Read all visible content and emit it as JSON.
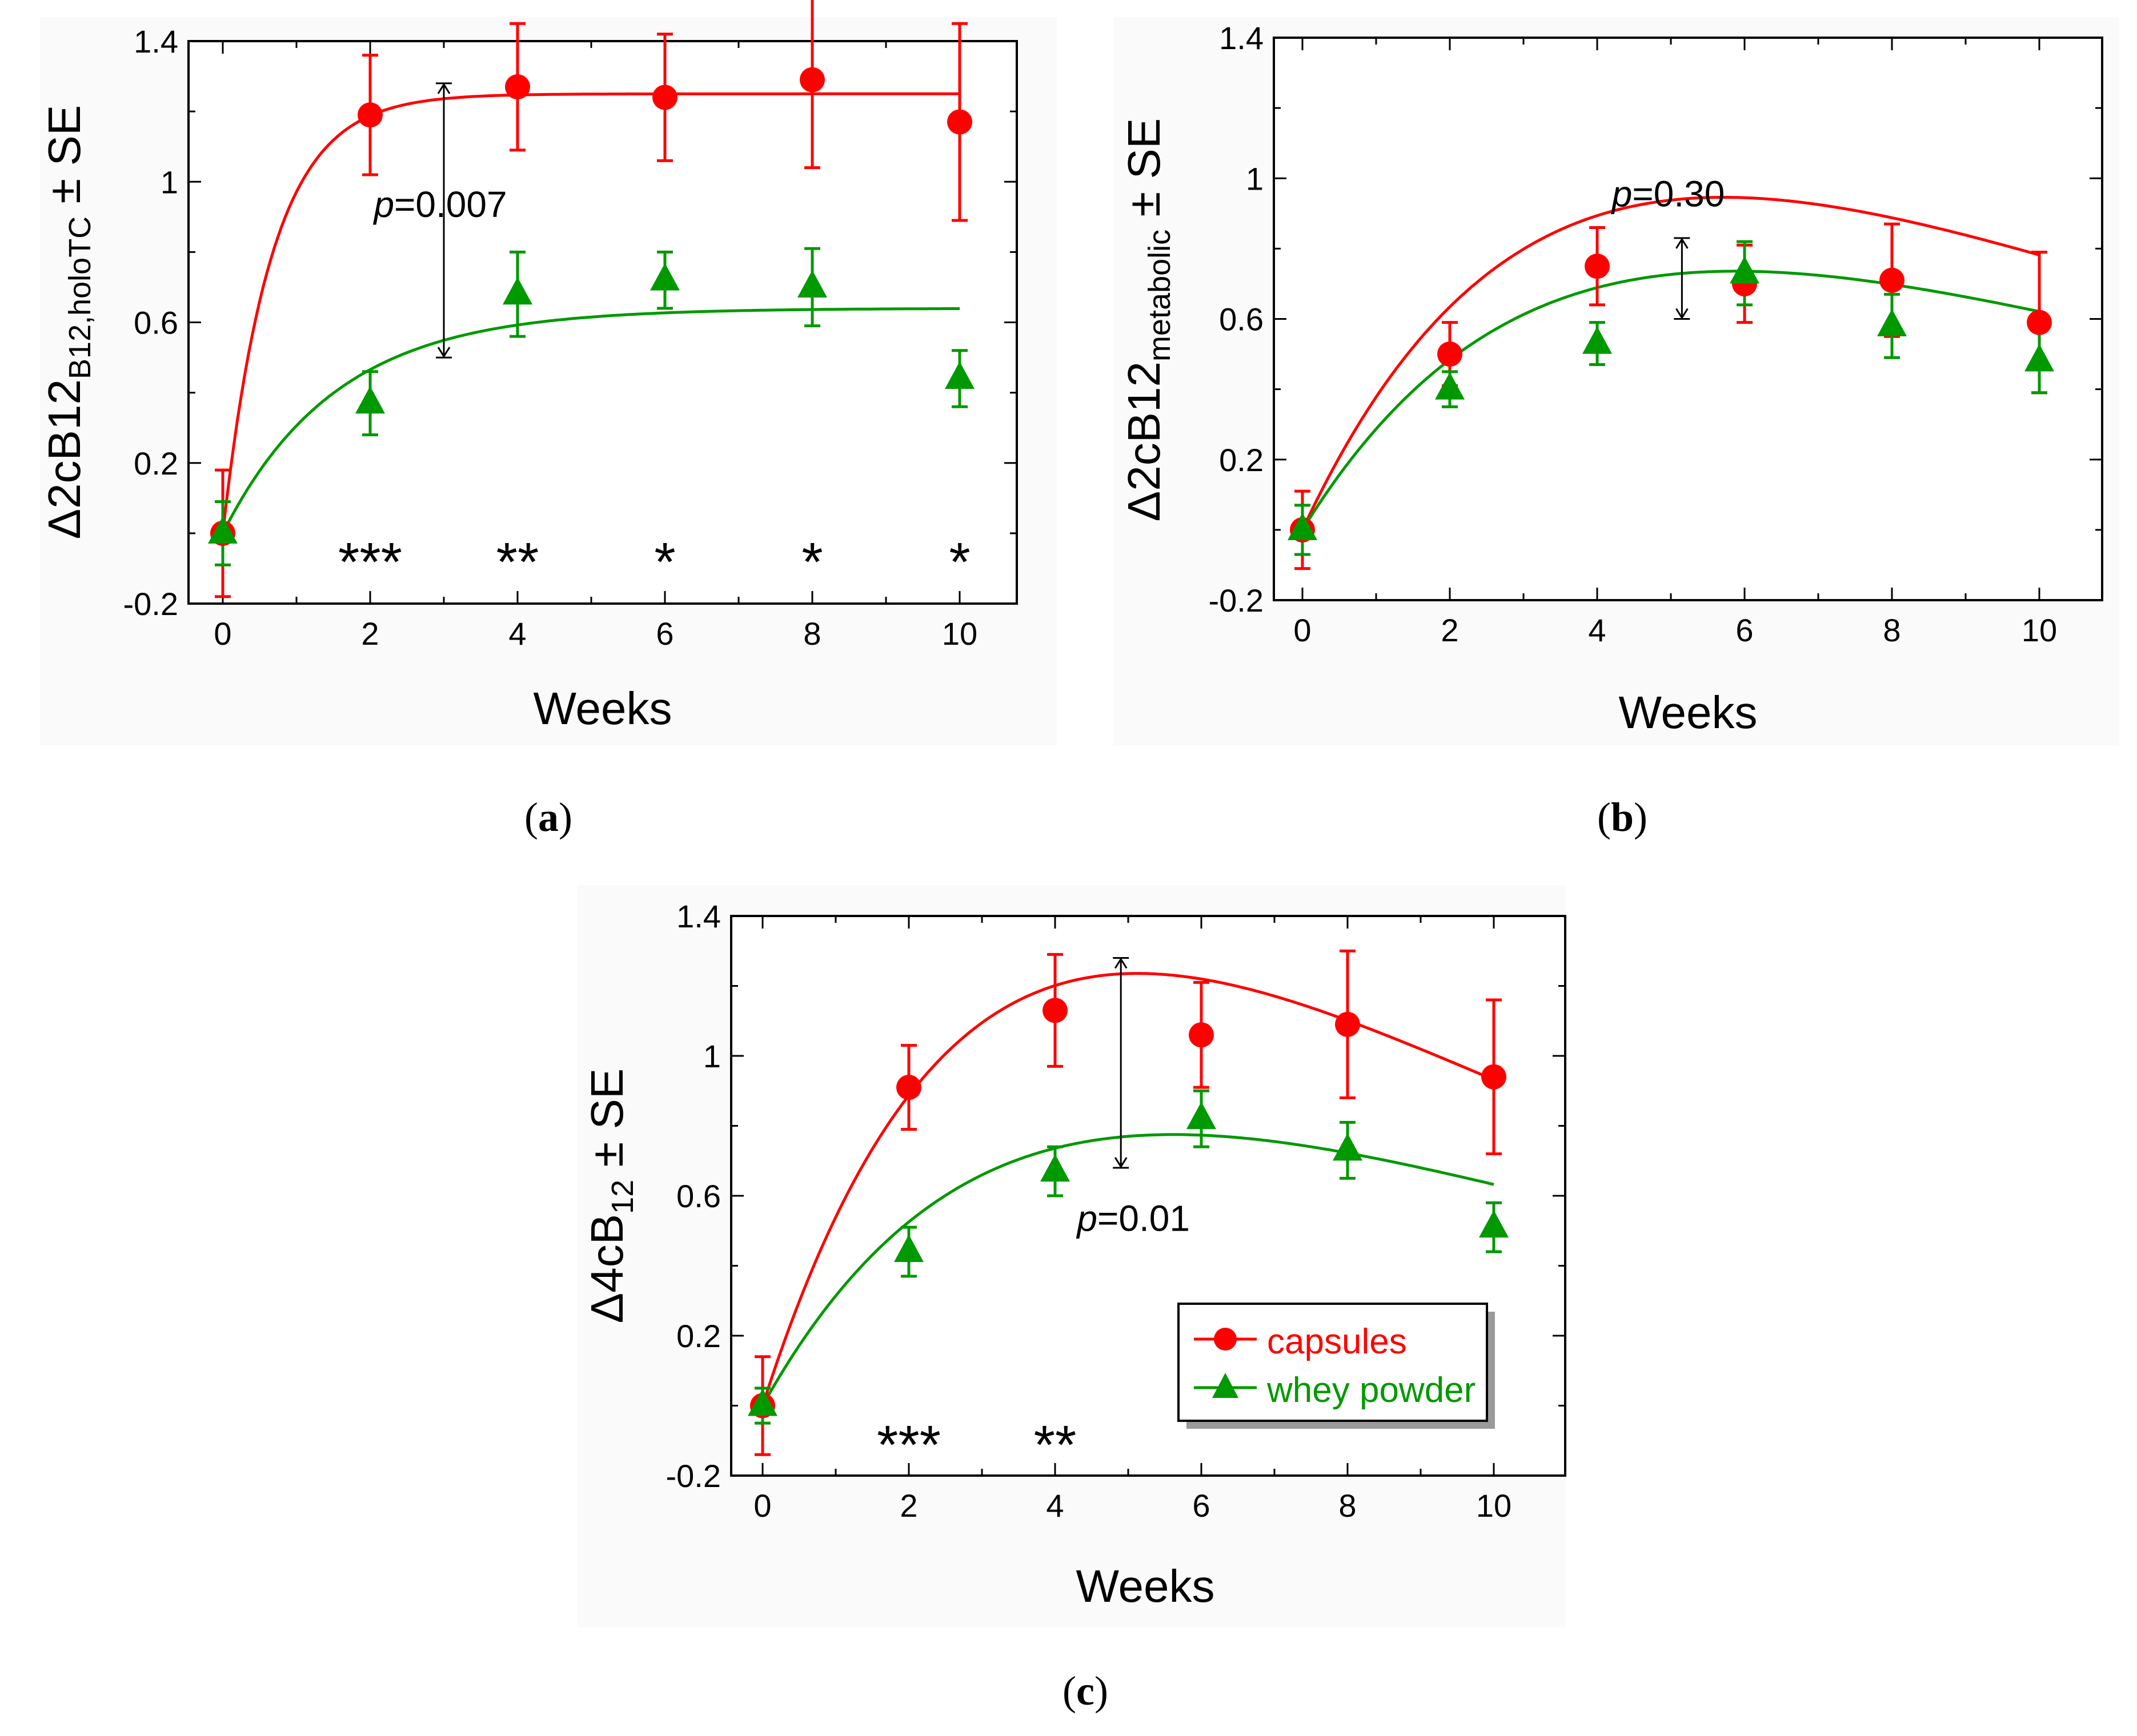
{
  "legend": {
    "capsules": "capsules",
    "whey": "whey powder"
  },
  "colors": {
    "capsules": "#ff0000",
    "whey": "#009900",
    "panel_bg": "#fafafa"
  },
  "chart_data": [
    {
      "type": "line",
      "panel_label": "a",
      "xlabel": "Weeks",
      "ylabel": {
        "main": "Δ2cB12",
        "sub": "B12,holoTC",
        "suffix": " ± SE"
      },
      "xlim": [
        0,
        10
      ],
      "ylim": [
        -0.2,
        1.4
      ],
      "xticks": [
        0,
        2,
        4,
        6,
        8,
        10
      ],
      "yticks": [
        -0.2,
        0.2,
        0.6,
        1,
        1.4
      ],
      "ytick_labels": [
        "-0.2",
        "0.2",
        "0.6",
        "1",
        "1.4"
      ],
      "series": [
        {
          "name": "capsules",
          "marker": "circle",
          "x": [
            0,
            2,
            4,
            6,
            8,
            10
          ],
          "y": [
            0.0,
            1.19,
            1.27,
            1.24,
            1.29,
            1.17
          ],
          "se": [
            0.18,
            0.17,
            0.18,
            0.18,
            0.25,
            0.28
          ],
          "fit": {
            "model": "exp",
            "a": 1.25,
            "k": 1.5,
            "x_end": 10
          }
        },
        {
          "name": "whey powder",
          "marker": "triangle",
          "x": [
            0,
            2,
            4,
            6,
            8,
            10
          ],
          "y": [
            0.0,
            0.37,
            0.68,
            0.72,
            0.7,
            0.44
          ],
          "se": [
            0.09,
            0.09,
            0.12,
            0.08,
            0.11,
            0.08
          ],
          "fit": {
            "model": "exp",
            "a": 0.64,
            "k": 0.65,
            "x_end": 10
          }
        }
      ],
      "annotations": [
        {
          "type": "bracket",
          "x": 3,
          "y1": 0.5,
          "y2": 1.28
        },
        {
          "type": "pvalue",
          "italic": "p",
          "text": "=0.007",
          "x": 2.05,
          "y": 0.9
        },
        {
          "type": "stars",
          "text": "***",
          "x": 2,
          "y": -0.07
        },
        {
          "type": "stars",
          "text": "**",
          "x": 4,
          "y": -0.07
        },
        {
          "type": "stars",
          "text": "*",
          "x": 6,
          "y": -0.07
        },
        {
          "type": "stars",
          "text": "*",
          "x": 8,
          "y": -0.07
        },
        {
          "type": "stars",
          "text": "*",
          "x": 10,
          "y": -0.07
        }
      ]
    },
    {
      "type": "line",
      "panel_label": "b",
      "xlabel": "Weeks",
      "ylabel": {
        "main": "Δ2cB12",
        "sub": "metabolic",
        "suffix": " ± SE"
      },
      "xlim": [
        0,
        10
      ],
      "ylim": [
        -0.2,
        1.4
      ],
      "xticks": [
        0,
        2,
        4,
        6,
        8,
        10
      ],
      "yticks": [
        -0.2,
        0.2,
        0.6,
        1,
        1.4
      ],
      "ytick_labels": [
        "-0.2",
        "0.2",
        "0.6",
        "1",
        "1.4"
      ],
      "series": [
        {
          "name": "capsules",
          "marker": "circle",
          "x": [
            0,
            2,
            4,
            6,
            8,
            10
          ],
          "y": [
            0.0,
            0.5,
            0.75,
            0.7,
            0.71,
            0.59
          ],
          "se": [
            0.11,
            0.09,
            0.11,
            0.11,
            0.16,
            0.2
          ],
          "fit": {
            "model": "peak",
            "a": 0.45,
            "b": 0.175,
            "x_end": 10
          }
        },
        {
          "name": "whey powder",
          "marker": "triangle",
          "x": [
            0,
            2,
            4,
            6,
            8,
            10
          ],
          "y": [
            0.0,
            0.4,
            0.53,
            0.73,
            0.58,
            0.48
          ],
          "se": [
            0.07,
            0.05,
            0.06,
            0.09,
            0.09,
            0.09
          ],
          "fit": {
            "model": "peak",
            "a": 0.34,
            "b": 0.17,
            "x_end": 10
          }
        }
      ],
      "annotations": [
        {
          "type": "bracket",
          "x": 5.15,
          "y1": 0.6,
          "y2": 0.83
        },
        {
          "type": "pvalue",
          "italic": "p",
          "text": "=0.30",
          "x": 4.2,
          "y": 0.92
        }
      ]
    },
    {
      "type": "line",
      "panel_label": "c",
      "xlabel": "Weeks",
      "ylabel": {
        "main": "Δ4cB",
        "sub": "12",
        "suffix": " ± SE"
      },
      "xlim": [
        0,
        10
      ],
      "ylim": [
        -0.2,
        1.4
      ],
      "xticks": [
        0,
        2,
        4,
        6,
        8,
        10
      ],
      "yticks": [
        -0.2,
        0.2,
        0.6,
        1,
        1.4
      ],
      "ytick_labels": [
        "-0.2",
        "0.2",
        "0.6",
        "1",
        "1.4"
      ],
      "legend_position": "bottom-right",
      "series": [
        {
          "name": "capsules",
          "marker": "circle",
          "x": [
            0,
            2,
            4,
            6,
            8,
            10
          ],
          "y": [
            0.0,
            0.91,
            1.13,
            1.06,
            1.09,
            0.94
          ],
          "se": [
            0.14,
            0.12,
            0.16,
            0.15,
            0.21,
            0.22
          ],
          "fit": {
            "model": "peak",
            "a": 0.655,
            "b": 0.195,
            "x_end": 10
          }
        },
        {
          "name": "whey powder",
          "marker": "triangle",
          "x": [
            0,
            2,
            4,
            6,
            8,
            10
          ],
          "y": [
            0.0,
            0.44,
            0.67,
            0.82,
            0.73,
            0.51
          ],
          "se": [
            0.05,
            0.07,
            0.07,
            0.08,
            0.08,
            0.07
          ],
          "fit": {
            "model": "peak",
            "a": 0.375,
            "b": 0.178,
            "x_end": 10
          }
        }
      ],
      "annotations": [
        {
          "type": "bracket",
          "x": 4.9,
          "y1": 0.68,
          "y2": 1.28
        },
        {
          "type": "pvalue",
          "italic": "p",
          "text": "=0.01",
          "x": 4.3,
          "y": 0.5
        },
        {
          "type": "stars",
          "text": "***",
          "x": 2,
          "y": -0.1
        },
        {
          "type": "stars",
          "text": "**",
          "x": 4,
          "y": -0.1
        }
      ]
    }
  ]
}
